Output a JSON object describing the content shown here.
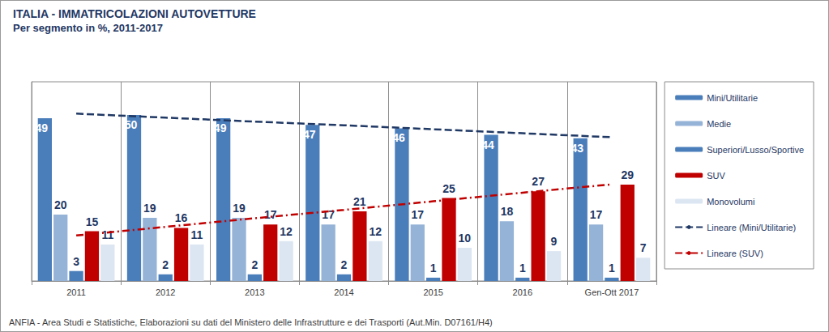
{
  "chart_data": {
    "type": "bar",
    "title": "ITALIA - IMMATRICOLAZIONI AUTOVETTURE",
    "subtitle": "Per segmento in %, 2011-2017",
    "annotations": [
      "ANFIA - Area Studi e Statistiche, Elaborazioni su dati del Ministero delle Infrastrutture e dei Trasporti (Aut.Min. D07161/H4)"
    ],
    "categories": [
      "2011",
      "2012",
      "2013",
      "2014",
      "2015",
      "2016",
      "Gen-Ott 2017"
    ],
    "series": [
      {
        "name": "Mini/Utilitarie",
        "color": "#4a7ebb",
        "values": [
          49,
          50,
          49,
          47,
          46,
          44,
          43
        ]
      },
      {
        "name": "Medie",
        "color": "#95b3d7",
        "values": [
          20,
          19,
          19,
          17,
          17,
          18,
          17
        ]
      },
      {
        "name": "Superiori/Lusso/Sportive",
        "color": "#4a7ebb",
        "values": [
          3,
          2,
          2,
          2,
          1,
          1,
          1
        ]
      },
      {
        "name": "SUV",
        "color": "#c00000",
        "values": [
          15,
          16,
          17,
          21,
          25,
          27,
          29
        ]
      },
      {
        "name": "Monovolumi",
        "color": "#dce6f2",
        "values": [
          11,
          11,
          12,
          12,
          10,
          9,
          7
        ]
      },
      {
        "name": "Lineare (Mini/Utilitarie)",
        "type": "line",
        "color": "#1f3864",
        "line_style": "dashed",
        "values": [
          50.4,
          49.2,
          48.0,
          46.9,
          45.7,
          44.5,
          43.3
        ]
      },
      {
        "name": "Lineare (SUV)",
        "type": "line",
        "color": "#c00000",
        "line_style": "dashdot",
        "values": [
          13.7,
          16.3,
          18.9,
          21.4,
          24.0,
          26.6,
          29.1
        ]
      }
    ],
    "ylim": [
      0,
      60
    ],
    "tick_labels": "x",
    "grid": "x",
    "legend": "right",
    "data_labels": true
  }
}
